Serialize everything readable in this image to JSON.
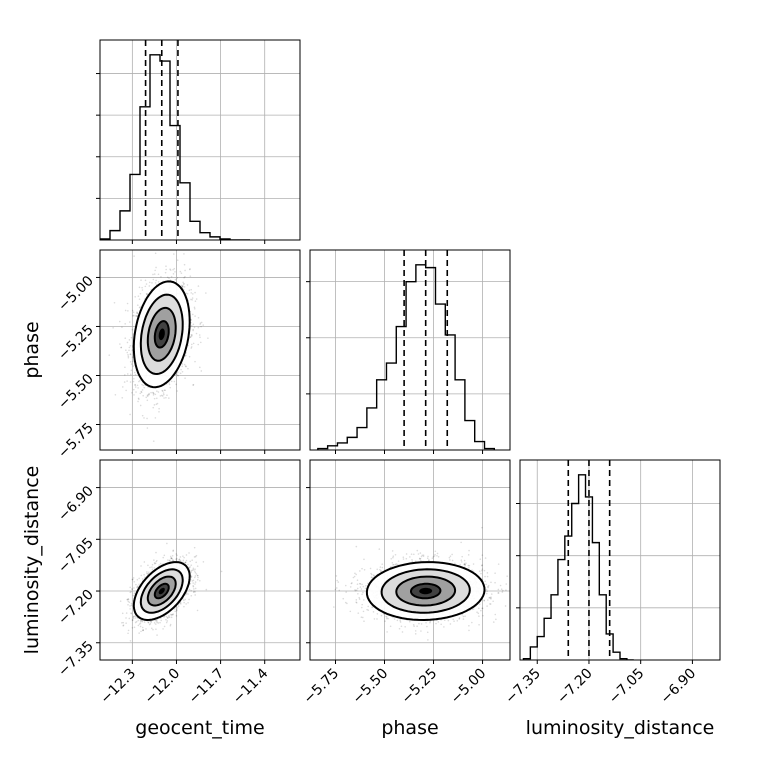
{
  "chart_data": {
    "type": "corner",
    "parameters": [
      "geocent_time",
      "phase",
      "luminosity_distance"
    ],
    "axis_labels": {
      "x": [
        "geocent_time",
        "phase",
        "luminosity_distance"
      ],
      "y": [
        "",
        "phase",
        "luminosity_distance"
      ]
    },
    "ranges": {
      "geocent_time": [
        -12.52,
        -11.16
      ],
      "phase": [
        -5.88,
        -4.86
      ],
      "luminosity_distance": [
        -7.4,
        -6.82
      ]
    },
    "ticks": {
      "geocent_time": [
        -12.3,
        -12.0,
        -11.7,
        -11.4
      ],
      "phase": [
        -5.75,
        -5.5,
        -5.25,
        -5.0
      ],
      "luminosity_distance": [
        -7.35,
        -7.2,
        -7.05,
        -6.9
      ]
    },
    "tick_labels": {
      "geocent_time": [
        "−12.3",
        "−12.0",
        "−11.7",
        "−11.4"
      ],
      "phase": [
        "−5.75",
        "−5.50",
        "−5.25",
        "−5.00"
      ],
      "luminosity_distance": [
        "−7.35",
        "−7.20",
        "−7.05",
        "−6.90"
      ]
    },
    "quantiles": {
      "geocent_time": [
        -12.21,
        -12.1,
        -11.99
      ],
      "phase": [
        -5.4,
        -5.29,
        -5.18
      ],
      "luminosity_distance": [
        -7.26,
        -7.2,
        -7.14
      ]
    },
    "histograms": {
      "geocent_time": {
        "edges": [
          -12.52,
          -12.452,
          -12.384,
          -12.316,
          -12.248,
          -12.18,
          -12.112,
          -12.044,
          -11.976,
          -11.908,
          -11.84,
          -11.772,
          -11.704,
          -11.636,
          -11.568,
          -11.5
        ],
        "counts": [
          1,
          9,
          28,
          63,
          128,
          178,
          172,
          110,
          55,
          18,
          7,
          3,
          1,
          0,
          0
        ]
      },
      "phase": {
        "edges": [
          -5.84,
          -5.79,
          -5.74,
          -5.69,
          -5.64,
          -5.59,
          -5.54,
          -5.49,
          -5.44,
          -5.39,
          -5.34,
          -5.29,
          -5.24,
          -5.19,
          -5.14,
          -5.09,
          -5.04,
          -4.99,
          -4.94
        ],
        "counts": [
          1,
          3,
          5,
          9,
          16,
          30,
          50,
          62,
          88,
          120,
          132,
          130,
          104,
          82,
          50,
          21,
          6,
          1
        ]
      },
      "luminosity_distance": {
        "edges": [
          -7.39,
          -7.37,
          -7.35,
          -7.33,
          -7.31,
          -7.29,
          -7.27,
          -7.25,
          -7.23,
          -7.21,
          -7.19,
          -7.17,
          -7.15,
          -7.13,
          -7.11,
          -7.09,
          -7.07
        ],
        "counts": [
          1,
          10,
          18,
          32,
          50,
          77,
          95,
          120,
          142,
          125,
          90,
          50,
          20,
          6,
          1,
          0
        ]
      }
    },
    "pairs": [
      {
        "x": "geocent_time",
        "y": "phase",
        "mean": [
          -12.1,
          -5.29
        ],
        "sd": [
          0.095,
          0.135
        ],
        "rho": 0.25
      },
      {
        "x": "geocent_time",
        "y": "luminosity_distance",
        "mean": [
          -12.1,
          -7.2
        ],
        "sd": [
          0.095,
          0.042
        ],
        "rho": 0.5
      },
      {
        "x": "phase",
        "y": "luminosity_distance",
        "mean": [
          -5.29,
          -7.2
        ],
        "sd": [
          0.15,
          0.042
        ],
        "rho": 0.05
      }
    ],
    "contour_levels_sigma": [
      0.5,
      1.0,
      1.5,
      2.0
    ],
    "grid": true
  }
}
